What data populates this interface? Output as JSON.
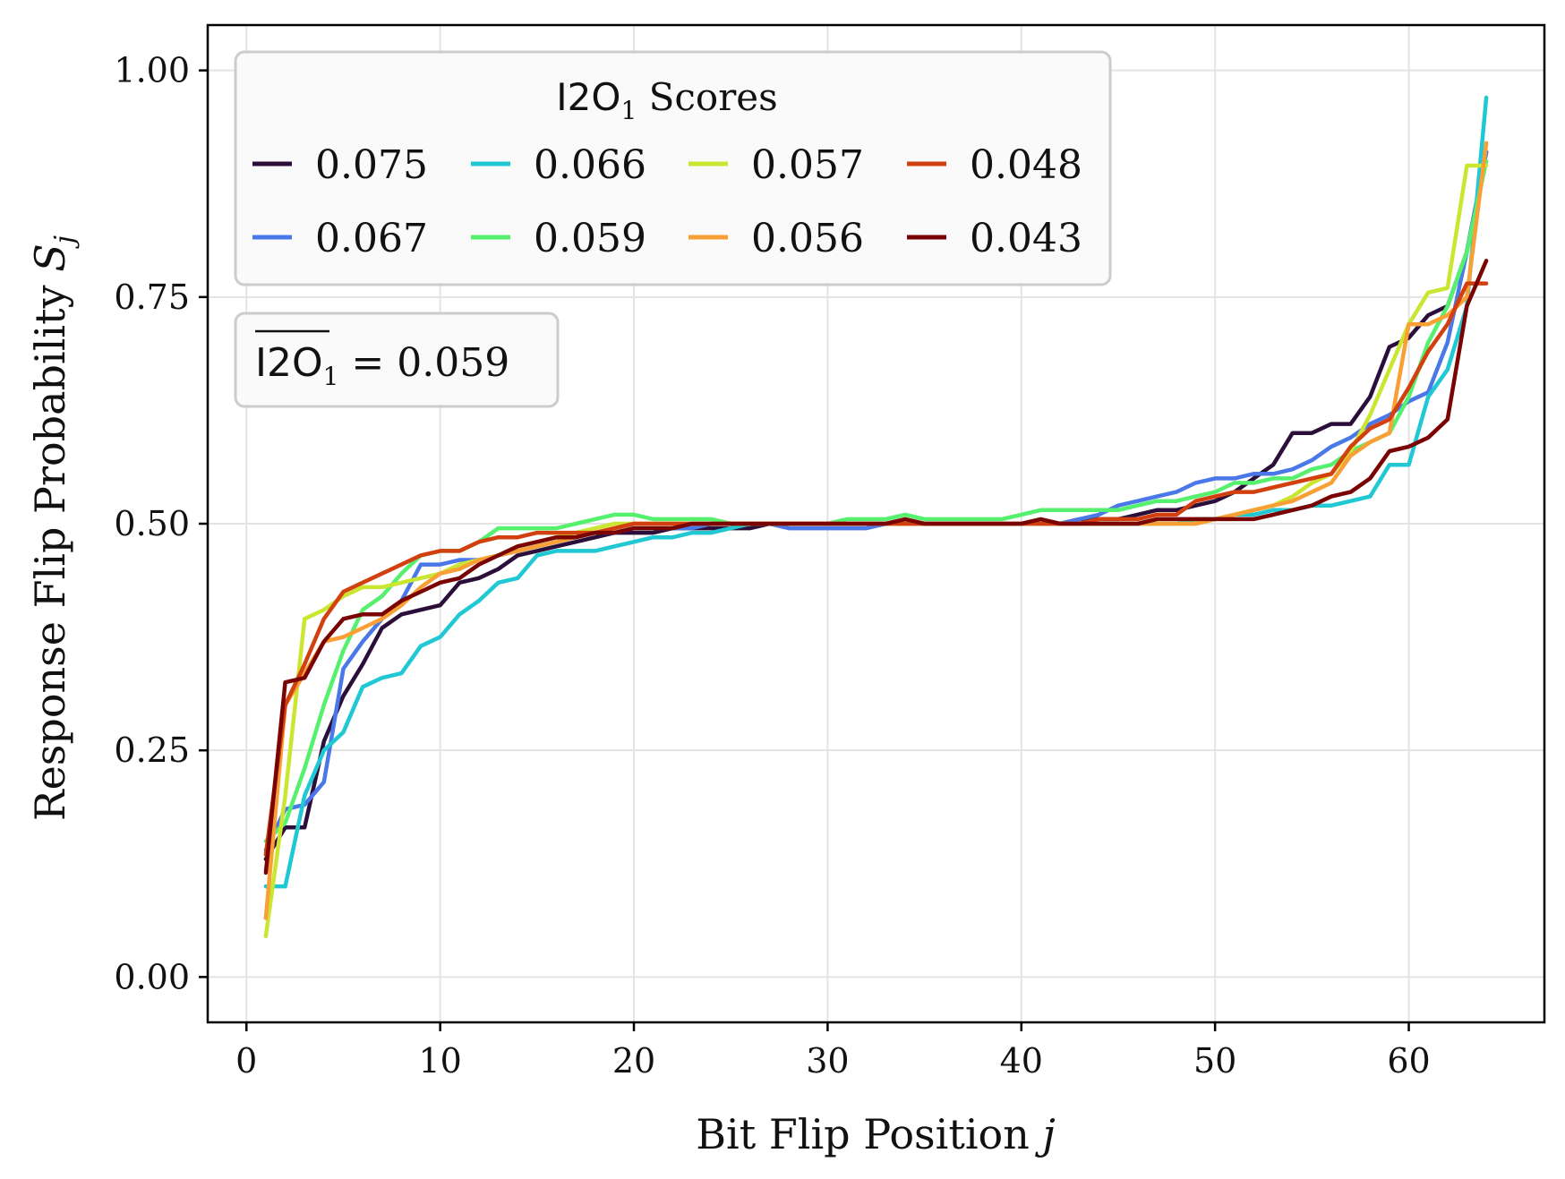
{
  "chart_data": {
    "type": "line",
    "xlabel_text": "Bit Flip Position ",
    "xlabel_var": "j",
    "ylabel_text": "Response Flip Probability ",
    "ylabel_var": "S",
    "ylabel_sub": "j",
    "xlim": [
      -2,
      67
    ],
    "ylim": [
      -0.05,
      1.05
    ],
    "xticks": [
      0,
      10,
      20,
      30,
      40,
      50,
      60
    ],
    "xtick_labels": [
      "0",
      "10",
      "20",
      "30",
      "40",
      "50",
      "60"
    ],
    "yticks": [
      0,
      0.25,
      0.5,
      0.75,
      1.0
    ],
    "ytick_labels": [
      "0.00",
      "0.25",
      "0.50",
      "0.75",
      "1.00"
    ],
    "grid": true,
    "legend": {
      "placement": "upper-left",
      "title_main": "I2O",
      "title_sub": "1",
      "title_rest": " Scores",
      "columns": 4
    },
    "annotation": {
      "placement": "upper-left",
      "label_main": "I2O",
      "label_sub": "1",
      "label_rest": " = 0.059"
    },
    "x": [
      1,
      2,
      3,
      4,
      5,
      6,
      7,
      8,
      9,
      10,
      11,
      12,
      13,
      14,
      15,
      16,
      17,
      18,
      19,
      20,
      21,
      22,
      23,
      24,
      25,
      26,
      27,
      28,
      29,
      30,
      31,
      32,
      33,
      34,
      35,
      36,
      37,
      38,
      39,
      40,
      41,
      42,
      43,
      44,
      45,
      46,
      47,
      48,
      49,
      50,
      51,
      52,
      53,
      54,
      55,
      56,
      57,
      58,
      59,
      60,
      61,
      62,
      63,
      64
    ],
    "series": [
      {
        "name": "0.075",
        "color": "#2b0f3a",
        "values": [
          0.13,
          0.165,
          0.165,
          0.26,
          0.31,
          0.345,
          0.385,
          0.4,
          0.405,
          0.41,
          0.435,
          0.44,
          0.45,
          0.465,
          0.47,
          0.475,
          0.48,
          0.485,
          0.49,
          0.49,
          0.49,
          0.495,
          0.495,
          0.495,
          0.495,
          0.495,
          0.5,
          0.5,
          0.5,
          0.5,
          0.5,
          0.5,
          0.5,
          0.5,
          0.5,
          0.5,
          0.5,
          0.5,
          0.5,
          0.5,
          0.5,
          0.5,
          0.505,
          0.505,
          0.505,
          0.51,
          0.515,
          0.515,
          0.52,
          0.525,
          0.535,
          0.55,
          0.565,
          0.6,
          0.6,
          0.61,
          0.61,
          0.64,
          0.695,
          0.705,
          0.73,
          0.74,
          0.8,
          0.91
        ]
      },
      {
        "name": "0.067",
        "color": "#4a78e8",
        "values": [
          0.14,
          0.185,
          0.19,
          0.215,
          0.34,
          0.37,
          0.395,
          0.415,
          0.455,
          0.455,
          0.46,
          0.46,
          0.465,
          0.47,
          0.475,
          0.48,
          0.485,
          0.49,
          0.49,
          0.495,
          0.495,
          0.495,
          0.495,
          0.5,
          0.5,
          0.5,
          0.5,
          0.495,
          0.495,
          0.495,
          0.495,
          0.495,
          0.5,
          0.5,
          0.5,
          0.5,
          0.5,
          0.5,
          0.5,
          0.5,
          0.5,
          0.5,
          0.505,
          0.51,
          0.52,
          0.525,
          0.53,
          0.535,
          0.545,
          0.55,
          0.55,
          0.555,
          0.555,
          0.56,
          0.57,
          0.585,
          0.595,
          0.61,
          0.62,
          0.635,
          0.645,
          0.7,
          0.8,
          0.91
        ]
      },
      {
        "name": "0.066",
        "color": "#1fc8d2",
        "values": [
          0.1,
          0.1,
          0.2,
          0.25,
          0.27,
          0.32,
          0.33,
          0.335,
          0.365,
          0.375,
          0.4,
          0.415,
          0.435,
          0.44,
          0.465,
          0.47,
          0.47,
          0.47,
          0.475,
          0.48,
          0.485,
          0.485,
          0.49,
          0.49,
          0.495,
          0.5,
          0.5,
          0.5,
          0.5,
          0.5,
          0.5,
          0.5,
          0.5,
          0.5,
          0.5,
          0.5,
          0.5,
          0.5,
          0.5,
          0.5,
          0.5,
          0.5,
          0.5,
          0.5,
          0.5,
          0.5,
          0.5,
          0.5,
          0.505,
          0.505,
          0.51,
          0.51,
          0.515,
          0.515,
          0.52,
          0.52,
          0.525,
          0.53,
          0.565,
          0.565,
          0.64,
          0.67,
          0.74,
          0.97
        ]
      },
      {
        "name": "0.059",
        "color": "#55f06e",
        "values": [
          0.15,
          0.17,
          0.23,
          0.3,
          0.36,
          0.405,
          0.42,
          0.445,
          0.465,
          0.47,
          0.47,
          0.48,
          0.495,
          0.495,
          0.495,
          0.495,
          0.5,
          0.505,
          0.51,
          0.51,
          0.505,
          0.505,
          0.505,
          0.505,
          0.5,
          0.5,
          0.5,
          0.5,
          0.5,
          0.5,
          0.505,
          0.505,
          0.505,
          0.51,
          0.505,
          0.505,
          0.505,
          0.505,
          0.505,
          0.51,
          0.515,
          0.515,
          0.515,
          0.515,
          0.515,
          0.52,
          0.525,
          0.525,
          0.53,
          0.535,
          0.545,
          0.545,
          0.55,
          0.55,
          0.56,
          0.565,
          0.58,
          0.59,
          0.6,
          0.64,
          0.7,
          0.74,
          0.8,
          0.9
        ]
      },
      {
        "name": "0.057",
        "color": "#cbe630",
        "values": [
          0.045,
          0.2,
          0.395,
          0.405,
          0.42,
          0.43,
          0.43,
          0.435,
          0.44,
          0.445,
          0.455,
          0.46,
          0.465,
          0.475,
          0.48,
          0.485,
          0.49,
          0.495,
          0.5,
          0.5,
          0.5,
          0.5,
          0.5,
          0.5,
          0.5,
          0.5,
          0.5,
          0.5,
          0.5,
          0.5,
          0.5,
          0.5,
          0.5,
          0.5,
          0.5,
          0.5,
          0.5,
          0.5,
          0.5,
          0.5,
          0.5,
          0.5,
          0.5,
          0.5,
          0.5,
          0.5,
          0.5,
          0.5,
          0.5,
          0.505,
          0.51,
          0.515,
          0.52,
          0.53,
          0.545,
          0.555,
          0.58,
          0.62,
          0.67,
          0.72,
          0.755,
          0.76,
          0.895,
          0.895
        ]
      },
      {
        "name": "0.056",
        "color": "#f8a035",
        "values": [
          0.065,
          0.3,
          0.335,
          0.37,
          0.375,
          0.385,
          0.395,
          0.41,
          0.43,
          0.445,
          0.45,
          0.46,
          0.465,
          0.47,
          0.475,
          0.48,
          0.485,
          0.49,
          0.495,
          0.5,
          0.5,
          0.5,
          0.5,
          0.5,
          0.5,
          0.5,
          0.5,
          0.5,
          0.5,
          0.5,
          0.5,
          0.5,
          0.5,
          0.5,
          0.5,
          0.5,
          0.5,
          0.5,
          0.5,
          0.5,
          0.5,
          0.5,
          0.5,
          0.5,
          0.5,
          0.5,
          0.5,
          0.5,
          0.5,
          0.505,
          0.51,
          0.515,
          0.52,
          0.525,
          0.535,
          0.545,
          0.575,
          0.59,
          0.6,
          0.72,
          0.72,
          0.73,
          0.75,
          0.92
        ]
      },
      {
        "name": "0.048",
        "color": "#d3400f",
        "values": [
          0.135,
          0.3,
          0.345,
          0.395,
          0.425,
          0.435,
          0.445,
          0.455,
          0.465,
          0.47,
          0.47,
          0.48,
          0.485,
          0.485,
          0.49,
          0.49,
          0.49,
          0.49,
          0.495,
          0.5,
          0.5,
          0.5,
          0.5,
          0.5,
          0.5,
          0.5,
          0.5,
          0.5,
          0.5,
          0.5,
          0.5,
          0.5,
          0.5,
          0.5,
          0.5,
          0.5,
          0.5,
          0.5,
          0.5,
          0.5,
          0.5,
          0.5,
          0.5,
          0.505,
          0.505,
          0.505,
          0.51,
          0.51,
          0.525,
          0.53,
          0.535,
          0.535,
          0.54,
          0.545,
          0.55,
          0.555,
          0.585,
          0.605,
          0.615,
          0.65,
          0.69,
          0.72,
          0.765,
          0.765
        ]
      },
      {
        "name": "0.043",
        "color": "#7a0403",
        "values": [
          0.115,
          0.325,
          0.33,
          0.37,
          0.395,
          0.4,
          0.4,
          0.415,
          0.425,
          0.435,
          0.44,
          0.455,
          0.465,
          0.475,
          0.48,
          0.485,
          0.485,
          0.49,
          0.49,
          0.495,
          0.495,
          0.495,
          0.5,
          0.5,
          0.5,
          0.5,
          0.5,
          0.5,
          0.5,
          0.5,
          0.5,
          0.5,
          0.5,
          0.505,
          0.5,
          0.5,
          0.5,
          0.5,
          0.5,
          0.5,
          0.505,
          0.5,
          0.5,
          0.5,
          0.5,
          0.5,
          0.505,
          0.505,
          0.505,
          0.505,
          0.505,
          0.505,
          0.51,
          0.515,
          0.52,
          0.53,
          0.535,
          0.55,
          0.58,
          0.585,
          0.595,
          0.615,
          0.74,
          0.79
        ]
      }
    ]
  }
}
